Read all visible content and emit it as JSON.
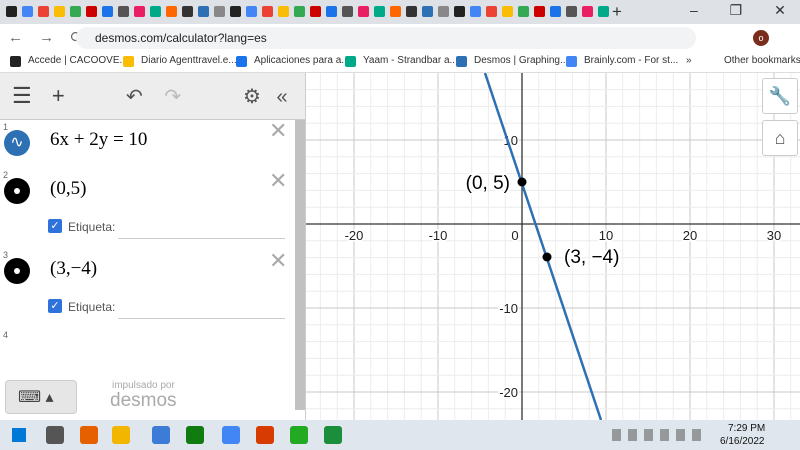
{
  "browser": {
    "url": "desmos.com/calculator?lang=es",
    "bookmarks": [
      "Accede | CACOOVE...",
      "Diario Agenttravel.e...",
      "Aplicaciones para a...",
      "Yaam - Strandbar a...",
      "Desmos | Graphing...",
      "Brainly.com - For st..."
    ],
    "more": "»",
    "other_bookmarks": "Other bookmarks"
  },
  "calculator": {
    "expressions": [
      {
        "number": 1,
        "text": "6x + 2y = 10"
      },
      {
        "number": 2,
        "text": "(0,5)",
        "label_option": "Etiqueta:"
      },
      {
        "number": 3,
        "text": "(3,−4)",
        "label_option": "Etiqueta:"
      }
    ],
    "empty_row": 4,
    "powered_by": "impulsado por",
    "brand": "desmos"
  },
  "graph": {
    "xticks": [
      -20,
      -10,
      0,
      10,
      20,
      30
    ],
    "yticks": [
      10,
      -10,
      -20
    ],
    "point_labels": [
      "(0, 5)",
      "(3, −4)"
    ]
  },
  "taskbar": {
    "time": "7:29 PM",
    "date": "6/16/2022"
  }
}
